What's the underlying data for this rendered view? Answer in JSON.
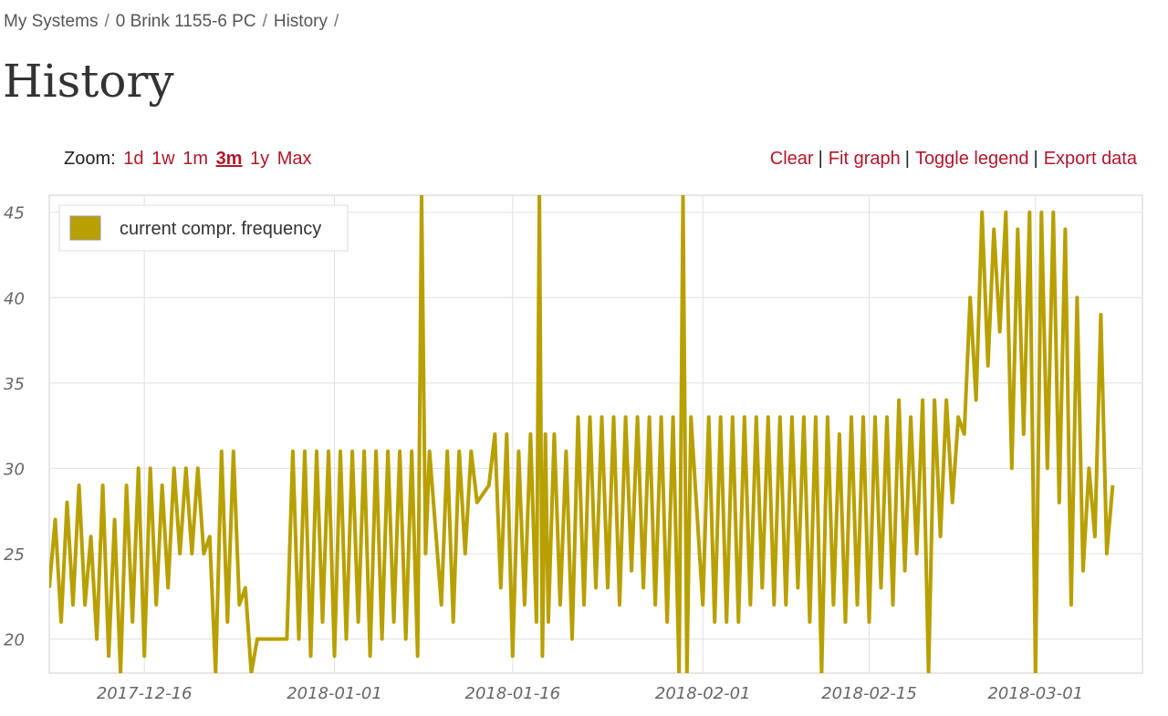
{
  "breadcrumb": {
    "items": [
      "My Systems",
      "0 Brink 1155-6 PC",
      "History"
    ],
    "separator": "/"
  },
  "page_title": "History",
  "zoom": {
    "label": "Zoom:",
    "options": [
      "1d",
      "1w",
      "1m",
      "3m",
      "1y",
      "Max"
    ],
    "active": "3m"
  },
  "actions": {
    "clear": "Clear",
    "fit_graph": "Fit graph",
    "toggle_legend": "Toggle legend",
    "export_data": "Export data",
    "separator": "|"
  },
  "colors": {
    "link": "#b0172b",
    "series": "#b8a000",
    "grid": "#e0e0e0"
  },
  "chart_data": {
    "type": "line",
    "x_is_date": true,
    "xlim": [
      "2017-12-08",
      "2018-03-10"
    ],
    "ylim": [
      18,
      46
    ],
    "x_ticks": [
      "2017-12-16",
      "2018-01-01",
      "2018-01-16",
      "2018-02-01",
      "2018-02-15",
      "2018-03-01"
    ],
    "y_ticks": [
      20,
      25,
      30,
      35,
      40,
      45
    ],
    "grid": true,
    "legend": {
      "position": "top-left",
      "visible": true
    },
    "series": [
      {
        "name": "current compr. frequency",
        "color": "#b8a000",
        "points": [
          [
            "2017-12-08",
            23
          ],
          [
            "2017-12-08",
            27
          ],
          [
            "2017-12-09",
            21
          ],
          [
            "2017-12-09",
            28
          ],
          [
            "2017-12-10",
            22
          ],
          [
            "2017-12-10",
            29
          ],
          [
            "2017-12-11",
            22
          ],
          [
            "2017-12-11",
            26
          ],
          [
            "2017-12-12",
            20
          ],
          [
            "2017-12-12",
            29
          ],
          [
            "2017-12-13",
            19
          ],
          [
            "2017-12-13",
            27
          ],
          [
            "2017-12-14",
            18
          ],
          [
            "2017-12-14",
            29
          ],
          [
            "2017-12-15",
            21
          ],
          [
            "2017-12-15",
            30
          ],
          [
            "2017-12-16",
            19
          ],
          [
            "2017-12-16",
            30
          ],
          [
            "2017-12-17",
            22
          ],
          [
            "2017-12-17",
            29
          ],
          [
            "2017-12-18",
            23
          ],
          [
            "2017-12-18",
            30
          ],
          [
            "2017-12-19",
            25
          ],
          [
            "2017-12-19",
            30
          ],
          [
            "2017-12-20",
            25
          ],
          [
            "2017-12-20",
            30
          ],
          [
            "2017-12-21",
            25
          ],
          [
            "2017-12-21",
            26
          ],
          [
            "2017-12-22",
            18
          ],
          [
            "2017-12-22",
            31
          ],
          [
            "2017-12-23",
            21
          ],
          [
            "2017-12-23",
            31
          ],
          [
            "2017-12-24",
            22
          ],
          [
            "2017-12-24",
            23
          ],
          [
            "2017-12-25",
            18
          ],
          [
            "2017-12-25",
            20
          ],
          [
            "2017-12-26",
            20
          ],
          [
            "2017-12-27",
            20
          ],
          [
            "2017-12-28",
            20
          ],
          [
            "2017-12-28",
            31
          ],
          [
            "2017-12-29",
            20
          ],
          [
            "2017-12-29",
            31
          ],
          [
            "2017-12-30",
            19
          ],
          [
            "2017-12-30",
            31
          ],
          [
            "2017-12-31",
            21
          ],
          [
            "2017-12-31",
            31
          ],
          [
            "2018-01-01",
            19
          ],
          [
            "2018-01-01",
            31
          ],
          [
            "2018-01-02",
            20
          ],
          [
            "2018-01-02",
            31
          ],
          [
            "2018-01-03",
            21
          ],
          [
            "2018-01-03",
            31
          ],
          [
            "2018-01-04",
            19
          ],
          [
            "2018-01-04",
            31
          ],
          [
            "2018-01-05",
            20
          ],
          [
            "2018-01-05",
            31
          ],
          [
            "2018-01-06",
            21
          ],
          [
            "2018-01-06",
            31
          ],
          [
            "2018-01-07",
            20
          ],
          [
            "2018-01-07",
            31
          ],
          [
            "2018-01-08",
            19
          ],
          [
            "2018-01-08",
            46
          ],
          [
            "2018-01-08",
            25
          ],
          [
            "2018-01-09",
            31
          ],
          [
            "2018-01-10",
            22
          ],
          [
            "2018-01-10",
            31
          ],
          [
            "2018-01-11",
            21
          ],
          [
            "2018-01-11",
            31
          ],
          [
            "2018-01-12",
            25
          ],
          [
            "2018-01-12",
            31
          ],
          [
            "2018-01-13",
            28
          ],
          [
            "2018-01-14",
            29
          ],
          [
            "2018-01-14",
            32
          ],
          [
            "2018-01-15",
            23
          ],
          [
            "2018-01-15",
            32
          ],
          [
            "2018-01-16",
            19
          ],
          [
            "2018-01-16",
            31
          ],
          [
            "2018-01-17",
            22
          ],
          [
            "2018-01-17",
            32
          ],
          [
            "2018-01-18",
            21
          ],
          [
            "2018-01-18",
            46
          ],
          [
            "2018-01-18",
            19
          ],
          [
            "2018-01-18",
            32
          ],
          [
            "2018-01-19",
            21
          ],
          [
            "2018-01-19",
            32
          ],
          [
            "2018-01-20",
            22
          ],
          [
            "2018-01-20",
            31
          ],
          [
            "2018-01-21",
            20
          ],
          [
            "2018-01-21",
            33
          ],
          [
            "2018-01-22",
            22
          ],
          [
            "2018-01-22",
            33
          ],
          [
            "2018-01-23",
            23
          ],
          [
            "2018-01-23",
            33
          ],
          [
            "2018-01-24",
            23
          ],
          [
            "2018-01-24",
            33
          ],
          [
            "2018-01-25",
            22
          ],
          [
            "2018-01-25",
            33
          ],
          [
            "2018-01-26",
            24
          ],
          [
            "2018-01-26",
            33
          ],
          [
            "2018-01-27",
            23
          ],
          [
            "2018-01-27",
            33
          ],
          [
            "2018-01-28",
            22
          ],
          [
            "2018-01-28",
            33
          ],
          [
            "2018-01-29",
            21
          ],
          [
            "2018-01-29",
            33
          ],
          [
            "2018-01-30",
            18
          ],
          [
            "2018-01-30",
            46
          ],
          [
            "2018-01-30",
            18
          ],
          [
            "2018-01-31",
            33
          ],
          [
            "2018-02-01",
            22
          ],
          [
            "2018-02-01",
            33
          ],
          [
            "2018-02-02",
            21
          ],
          [
            "2018-02-02",
            33
          ],
          [
            "2018-02-03",
            21
          ],
          [
            "2018-02-03",
            33
          ],
          [
            "2018-02-04",
            21
          ],
          [
            "2018-02-04",
            33
          ],
          [
            "2018-02-05",
            22
          ],
          [
            "2018-02-05",
            33
          ],
          [
            "2018-02-06",
            23
          ],
          [
            "2018-02-06",
            33
          ],
          [
            "2018-02-07",
            22
          ],
          [
            "2018-02-07",
            33
          ],
          [
            "2018-02-08",
            22
          ],
          [
            "2018-02-08",
            33
          ],
          [
            "2018-02-09",
            23
          ],
          [
            "2018-02-09",
            33
          ],
          [
            "2018-02-10",
            21
          ],
          [
            "2018-02-10",
            33
          ],
          [
            "2018-02-11",
            18
          ],
          [
            "2018-02-11",
            33
          ],
          [
            "2018-02-12",
            22
          ],
          [
            "2018-02-12",
            32
          ],
          [
            "2018-02-13",
            21
          ],
          [
            "2018-02-13",
            33
          ],
          [
            "2018-02-14",
            22
          ],
          [
            "2018-02-14",
            33
          ],
          [
            "2018-02-15",
            21
          ],
          [
            "2018-02-15",
            33
          ],
          [
            "2018-02-16",
            23
          ],
          [
            "2018-02-16",
            33
          ],
          [
            "2018-02-17",
            22
          ],
          [
            "2018-02-17",
            34
          ],
          [
            "2018-02-18",
            24
          ],
          [
            "2018-02-18",
            33
          ],
          [
            "2018-02-19",
            25
          ],
          [
            "2018-02-19",
            34
          ],
          [
            "2018-02-20",
            18
          ],
          [
            "2018-02-20",
            34
          ],
          [
            "2018-02-21",
            26
          ],
          [
            "2018-02-21",
            34
          ],
          [
            "2018-02-22",
            28
          ],
          [
            "2018-02-22",
            33
          ],
          [
            "2018-02-23",
            32
          ],
          [
            "2018-02-23",
            40
          ],
          [
            "2018-02-24",
            34
          ],
          [
            "2018-02-24",
            45
          ],
          [
            "2018-02-25",
            36
          ],
          [
            "2018-02-25",
            44
          ],
          [
            "2018-02-26",
            38
          ],
          [
            "2018-02-26",
            45
          ],
          [
            "2018-02-27",
            30
          ],
          [
            "2018-02-27",
            44
          ],
          [
            "2018-02-28",
            32
          ],
          [
            "2018-02-28",
            45
          ],
          [
            "2018-03-01",
            18
          ],
          [
            "2018-03-01",
            45
          ],
          [
            "2018-03-02",
            30
          ],
          [
            "2018-03-02",
            45
          ],
          [
            "2018-03-03",
            28
          ],
          [
            "2018-03-03",
            44
          ],
          [
            "2018-03-04",
            22
          ],
          [
            "2018-03-04",
            40
          ],
          [
            "2018-03-05",
            24
          ],
          [
            "2018-03-05",
            30
          ],
          [
            "2018-03-06",
            26
          ],
          [
            "2018-03-06",
            39
          ],
          [
            "2018-03-07",
            25
          ],
          [
            "2018-03-07",
            29
          ]
        ]
      }
    ]
  }
}
